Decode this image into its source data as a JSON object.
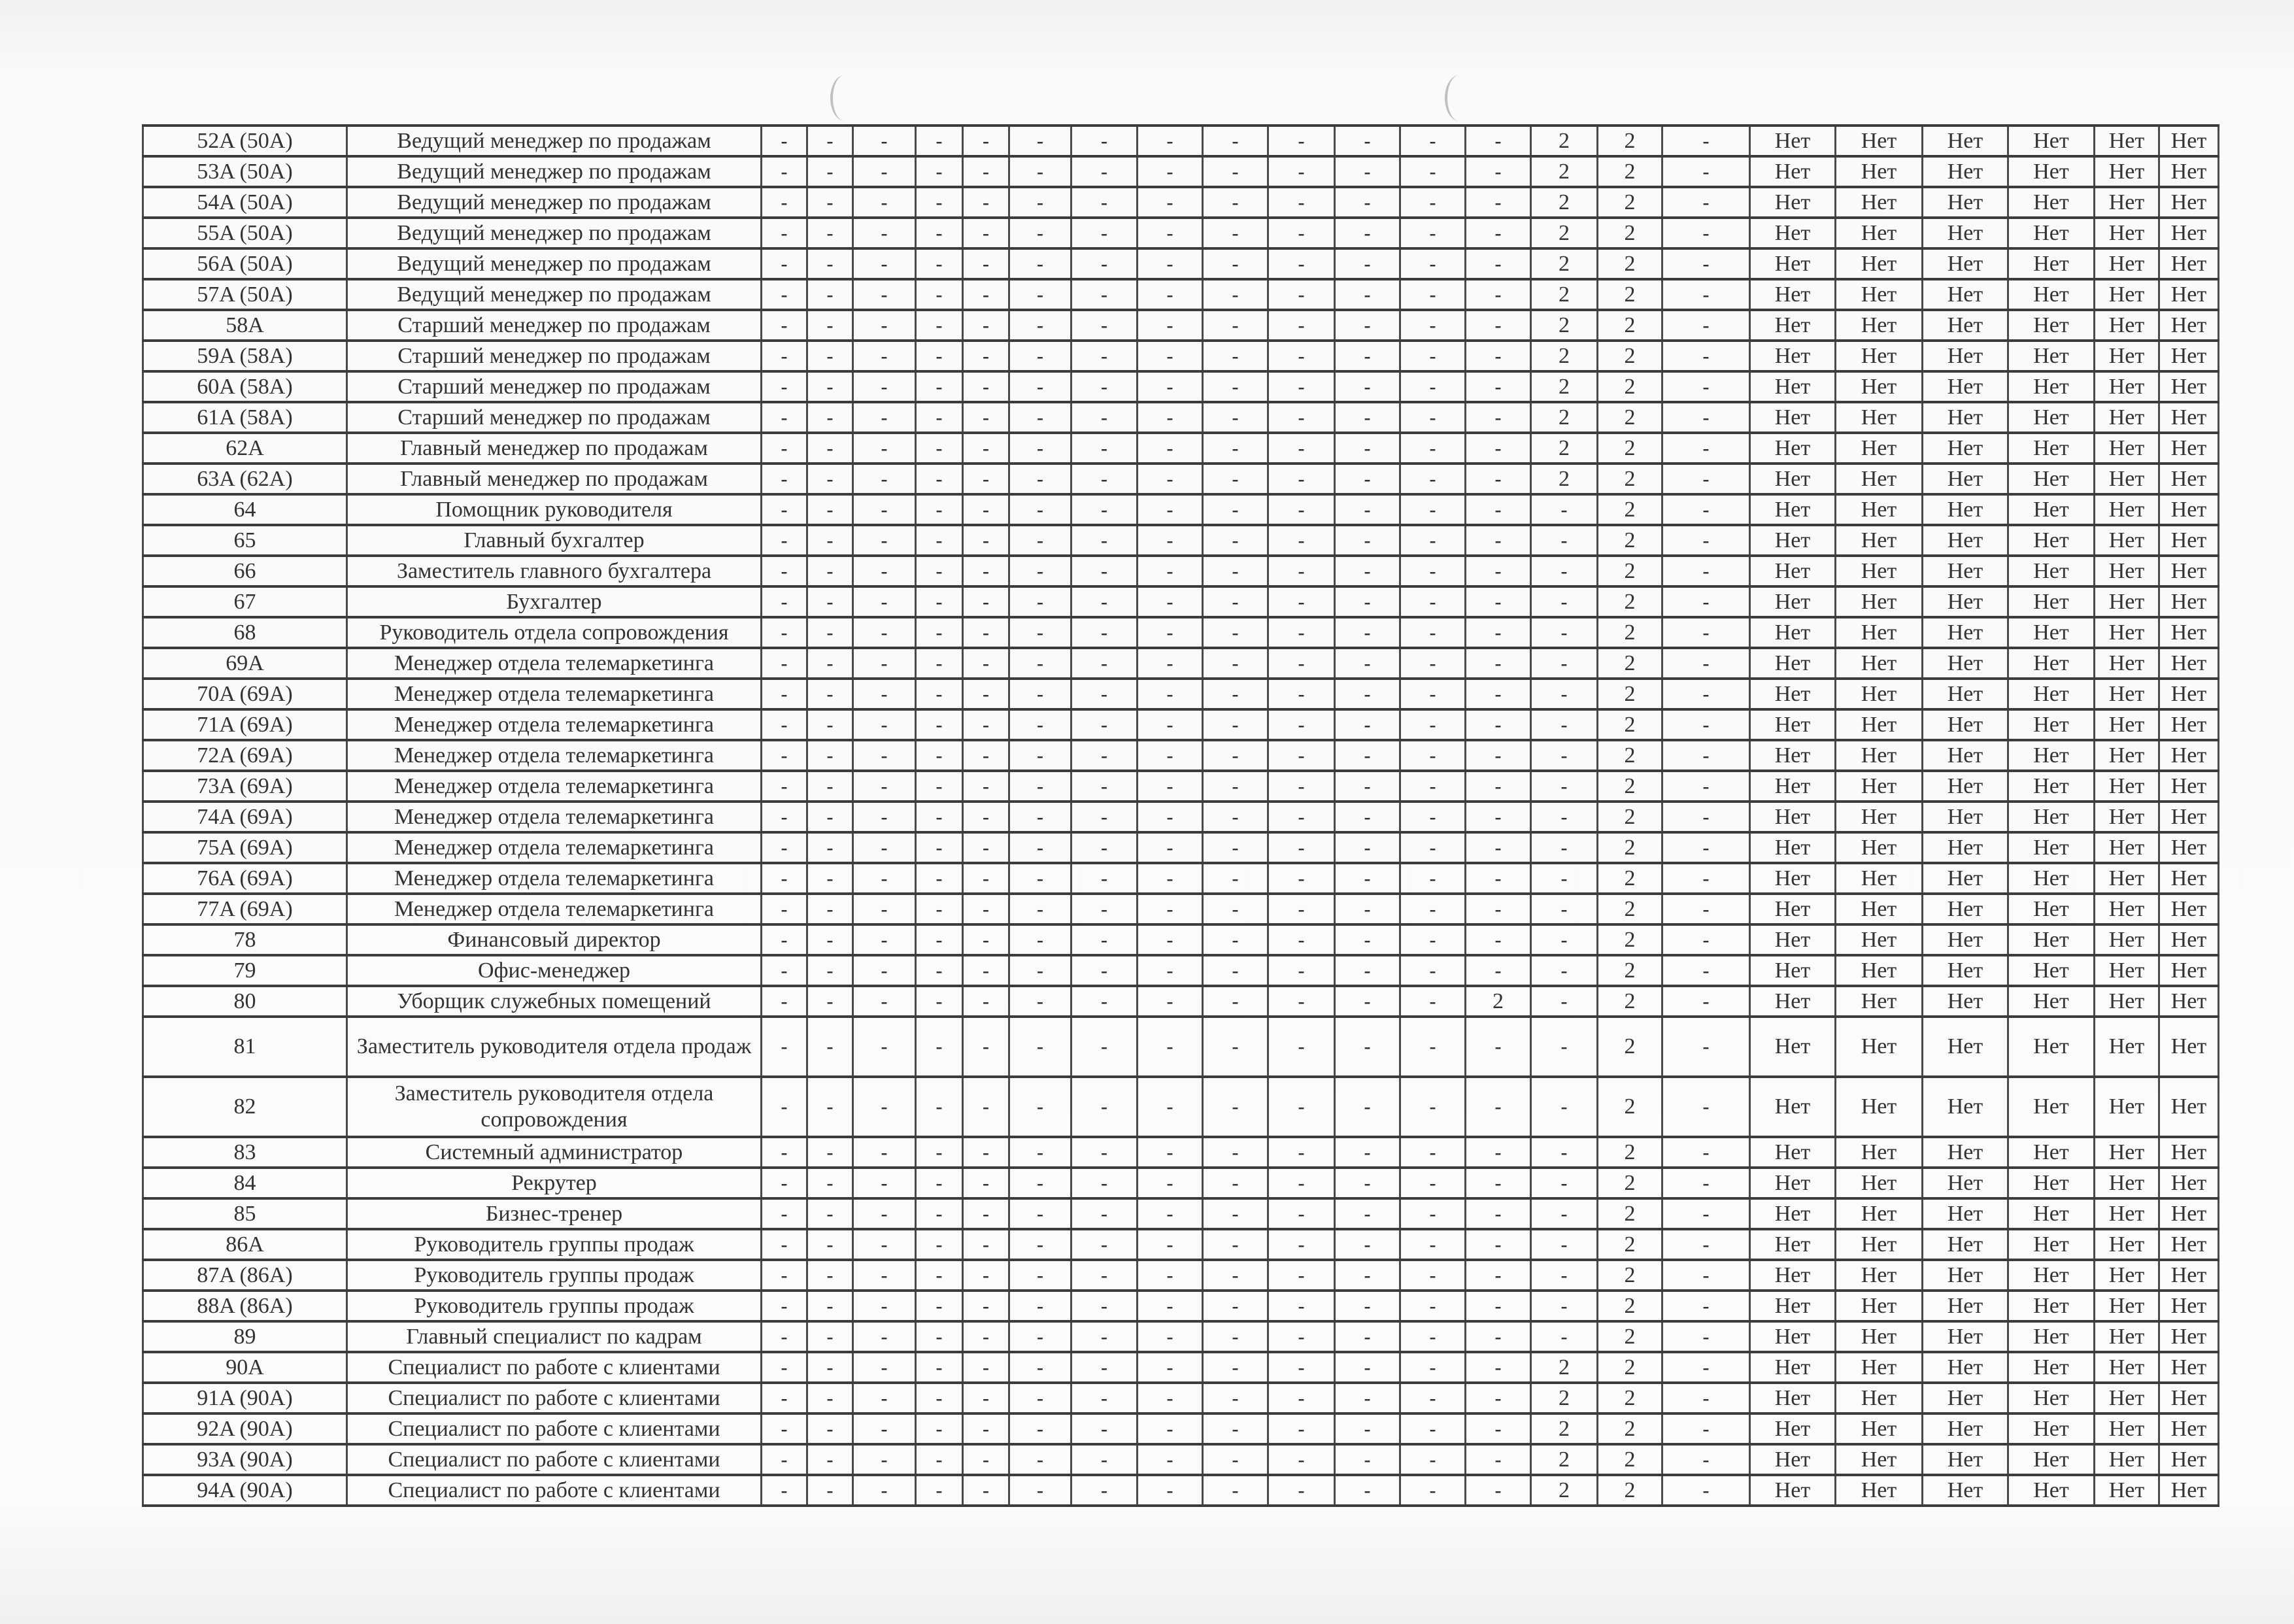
{
  "table": {
    "no_label": "Нет",
    "rows": [
      {
        "id": "52A (50A)",
        "title": "Ведущий менеджер по продажам",
        "values": [
          "-",
          "-",
          "-",
          "-",
          "-",
          "-",
          "-",
          "-",
          "-",
          "-",
          "-",
          "-",
          "-",
          "2",
          "2",
          "-"
        ]
      },
      {
        "id": "53A (50A)",
        "title": "Ведущий менеджер по продажам",
        "values": [
          "-",
          "-",
          "-",
          "-",
          "-",
          "-",
          "-",
          "-",
          "-",
          "-",
          "-",
          "-",
          "-",
          "2",
          "2",
          "-"
        ]
      },
      {
        "id": "54A (50A)",
        "title": "Ведущий менеджер по продажам",
        "values": [
          "-",
          "-",
          "-",
          "-",
          "-",
          "-",
          "-",
          "-",
          "-",
          "-",
          "-",
          "-",
          "-",
          "2",
          "2",
          "-"
        ]
      },
      {
        "id": "55A (50A)",
        "title": "Ведущий менеджер по продажам",
        "values": [
          "-",
          "-",
          "-",
          "-",
          "-",
          "-",
          "-",
          "-",
          "-",
          "-",
          "-",
          "-",
          "-",
          "2",
          "2",
          "-"
        ]
      },
      {
        "id": "56A (50A)",
        "title": "Ведущий менеджер по продажам",
        "values": [
          "-",
          "-",
          "-",
          "-",
          "-",
          "-",
          "-",
          "-",
          "-",
          "-",
          "-",
          "-",
          "-",
          "2",
          "2",
          "-"
        ]
      },
      {
        "id": "57A (50A)",
        "title": "Ведущий менеджер по продажам",
        "values": [
          "-",
          "-",
          "-",
          "-",
          "-",
          "-",
          "-",
          "-",
          "-",
          "-",
          "-",
          "-",
          "-",
          "2",
          "2",
          "-"
        ]
      },
      {
        "id": "58A",
        "title": "Старший менеджер по продажам",
        "values": [
          "-",
          "-",
          "-",
          "-",
          "-",
          "-",
          "-",
          "-",
          "-",
          "-",
          "-",
          "-",
          "-",
          "2",
          "2",
          "-"
        ]
      },
      {
        "id": "59A (58A)",
        "title": "Старший менеджер по продажам",
        "values": [
          "-",
          "-",
          "-",
          "-",
          "-",
          "-",
          "-",
          "-",
          "-",
          "-",
          "-",
          "-",
          "-",
          "2",
          "2",
          "-"
        ]
      },
      {
        "id": "60A (58A)",
        "title": "Старший менеджер по продажам",
        "values": [
          "-",
          "-",
          "-",
          "-",
          "-",
          "-",
          "-",
          "-",
          "-",
          "-",
          "-",
          "-",
          "-",
          "2",
          "2",
          "-"
        ]
      },
      {
        "id": "61A (58A)",
        "title": "Старший менеджер по продажам",
        "values": [
          "-",
          "-",
          "-",
          "-",
          "-",
          "-",
          "-",
          "-",
          "-",
          "-",
          "-",
          "-",
          "-",
          "2",
          "2",
          "-"
        ]
      },
      {
        "id": "62A",
        "title": "Главный менеджер по продажам",
        "values": [
          "-",
          "-",
          "-",
          "-",
          "-",
          "-",
          "-",
          "-",
          "-",
          "-",
          "-",
          "-",
          "-",
          "2",
          "2",
          "-"
        ]
      },
      {
        "id": "63A (62A)",
        "title": "Главный менеджер по продажам",
        "values": [
          "-",
          "-",
          "-",
          "-",
          "-",
          "-",
          "-",
          "-",
          "-",
          "-",
          "-",
          "-",
          "-",
          "2",
          "2",
          "-"
        ]
      },
      {
        "id": "64",
        "title": "Помощник руководителя",
        "values": [
          "-",
          "-",
          "-",
          "-",
          "-",
          "-",
          "-",
          "-",
          "-",
          "-",
          "-",
          "-",
          "-",
          "-",
          "2",
          "-"
        ]
      },
      {
        "id": "65",
        "title": "Главный бухгалтер",
        "values": [
          "-",
          "-",
          "-",
          "-",
          "-",
          "-",
          "-",
          "-",
          "-",
          "-",
          "-",
          "-",
          "-",
          "-",
          "2",
          "-"
        ]
      },
      {
        "id": "66",
        "title": "Заместитель главного бухгалтера",
        "values": [
          "-",
          "-",
          "-",
          "-",
          "-",
          "-",
          "-",
          "-",
          "-",
          "-",
          "-",
          "-",
          "-",
          "-",
          "2",
          "-"
        ]
      },
      {
        "id": "67",
        "title": "Бухгалтер",
        "values": [
          "-",
          "-",
          "-",
          "-",
          "-",
          "-",
          "-",
          "-",
          "-",
          "-",
          "-",
          "-",
          "-",
          "-",
          "2",
          "-"
        ]
      },
      {
        "id": "68",
        "title": "Руководитель отдела сопровождения",
        "values": [
          "-",
          "-",
          "-",
          "-",
          "-",
          "-",
          "-",
          "-",
          "-",
          "-",
          "-",
          "-",
          "-",
          "-",
          "2",
          "-"
        ]
      },
      {
        "id": "69A",
        "title": "Менеджер отдела телемаркетинга",
        "values": [
          "-",
          "-",
          "-",
          "-",
          "-",
          "-",
          "-",
          "-",
          "-",
          "-",
          "-",
          "-",
          "-",
          "-",
          "2",
          "-"
        ]
      },
      {
        "id": "70A (69A)",
        "title": "Менеджер отдела телемаркетинга",
        "values": [
          "-",
          "-",
          "-",
          "-",
          "-",
          "-",
          "-",
          "-",
          "-",
          "-",
          "-",
          "-",
          "-",
          "-",
          "2",
          "-"
        ]
      },
      {
        "id": "71A (69A)",
        "title": "Менеджер отдела телемаркетинга",
        "values": [
          "-",
          "-",
          "-",
          "-",
          "-",
          "-",
          "-",
          "-",
          "-",
          "-",
          "-",
          "-",
          "-",
          "-",
          "2",
          "-"
        ]
      },
      {
        "id": "72A (69A)",
        "title": "Менеджер отдела телемаркетинга",
        "values": [
          "-",
          "-",
          "-",
          "-",
          "-",
          "-",
          "-",
          "-",
          "-",
          "-",
          "-",
          "-",
          "-",
          "-",
          "2",
          "-"
        ]
      },
      {
        "id": "73A (69A)",
        "title": "Менеджер отдела телемаркетинга",
        "values": [
          "-",
          "-",
          "-",
          "-",
          "-",
          "-",
          "-",
          "-",
          "-",
          "-",
          "-",
          "-",
          "-",
          "-",
          "2",
          "-"
        ]
      },
      {
        "id": "74A (69A)",
        "title": "Менеджер отдела телемаркетинга",
        "values": [
          "-",
          "-",
          "-",
          "-",
          "-",
          "-",
          "-",
          "-",
          "-",
          "-",
          "-",
          "-",
          "-",
          "-",
          "2",
          "-"
        ]
      },
      {
        "id": "75A (69A)",
        "title": "Менеджер отдела телемаркетинга",
        "values": [
          "-",
          "-",
          "-",
          "-",
          "-",
          "-",
          "-",
          "-",
          "-",
          "-",
          "-",
          "-",
          "-",
          "-",
          "2",
          "-"
        ]
      },
      {
        "id": "76A (69A)",
        "title": "Менеджер отдела телемаркетинга",
        "values": [
          "-",
          "-",
          "-",
          "-",
          "-",
          "-",
          "-",
          "-",
          "-",
          "-",
          "-",
          "-",
          "-",
          "-",
          "2",
          "-"
        ]
      },
      {
        "id": "77A (69A)",
        "title": "Менеджер отдела телемаркетинга",
        "values": [
          "-",
          "-",
          "-",
          "-",
          "-",
          "-",
          "-",
          "-",
          "-",
          "-",
          "-",
          "-",
          "-",
          "-",
          "2",
          "-"
        ]
      },
      {
        "id": "78",
        "title": "Финансовый директор",
        "values": [
          "-",
          "-",
          "-",
          "-",
          "-",
          "-",
          "-",
          "-",
          "-",
          "-",
          "-",
          "-",
          "-",
          "-",
          "2",
          "-"
        ]
      },
      {
        "id": "79",
        "title": "Офис-менеджер",
        "values": [
          "-",
          "-",
          "-",
          "-",
          "-",
          "-",
          "-",
          "-",
          "-",
          "-",
          "-",
          "-",
          "-",
          "-",
          "2",
          "-"
        ]
      },
      {
        "id": "80",
        "title": "Уборщик служебных помещений",
        "values": [
          "-",
          "-",
          "-",
          "-",
          "-",
          "-",
          "-",
          "-",
          "-",
          "-",
          "-",
          "-",
          "2",
          "-",
          "2",
          "-"
        ]
      },
      {
        "id": "81",
        "title": "Заместитель руководителя отдела продаж",
        "values": [
          "-",
          "-",
          "-",
          "-",
          "-",
          "-",
          "-",
          "-",
          "-",
          "-",
          "-",
          "-",
          "-",
          "-",
          "2",
          "-"
        ]
      },
      {
        "id": "82",
        "title": "Заместитель руководителя отдела сопровождения",
        "values": [
          "-",
          "-",
          "-",
          "-",
          "-",
          "-",
          "-",
          "-",
          "-",
          "-",
          "-",
          "-",
          "-",
          "-",
          "2",
          "-"
        ]
      },
      {
        "id": "83",
        "title": "Системный администратор",
        "values": [
          "-",
          "-",
          "-",
          "-",
          "-",
          "-",
          "-",
          "-",
          "-",
          "-",
          "-",
          "-",
          "-",
          "-",
          "2",
          "-"
        ]
      },
      {
        "id": "84",
        "title": "Рекрутер",
        "values": [
          "-",
          "-",
          "-",
          "-",
          "-",
          "-",
          "-",
          "-",
          "-",
          "-",
          "-",
          "-",
          "-",
          "-",
          "2",
          "-"
        ]
      },
      {
        "id": "85",
        "title": "Бизнес-тренер",
        "values": [
          "-",
          "-",
          "-",
          "-",
          "-",
          "-",
          "-",
          "-",
          "-",
          "-",
          "-",
          "-",
          "-",
          "-",
          "2",
          "-"
        ]
      },
      {
        "id": "86A",
        "title": "Руководитель группы продаж",
        "values": [
          "-",
          "-",
          "-",
          "-",
          "-",
          "-",
          "-",
          "-",
          "-",
          "-",
          "-",
          "-",
          "-",
          "-",
          "2",
          "-"
        ]
      },
      {
        "id": "87A (86A)",
        "title": "Руководитель группы продаж",
        "values": [
          "-",
          "-",
          "-",
          "-",
          "-",
          "-",
          "-",
          "-",
          "-",
          "-",
          "-",
          "-",
          "-",
          "-",
          "2",
          "-"
        ]
      },
      {
        "id": "88A (86A)",
        "title": "Руководитель группы продаж",
        "values": [
          "-",
          "-",
          "-",
          "-",
          "-",
          "-",
          "-",
          "-",
          "-",
          "-",
          "-",
          "-",
          "-",
          "-",
          "2",
          "-"
        ]
      },
      {
        "id": "89",
        "title": "Главный специалист по кадрам",
        "values": [
          "-",
          "-",
          "-",
          "-",
          "-",
          "-",
          "-",
          "-",
          "-",
          "-",
          "-",
          "-",
          "-",
          "-",
          "2",
          "-"
        ]
      },
      {
        "id": "90A",
        "title": "Специалист по работе с клиентами",
        "values": [
          "-",
          "-",
          "-",
          "-",
          "-",
          "-",
          "-",
          "-",
          "-",
          "-",
          "-",
          "-",
          "-",
          "2",
          "2",
          "-"
        ]
      },
      {
        "id": "91A (90A)",
        "title": "Специалист по работе с клиентами",
        "values": [
          "-",
          "-",
          "-",
          "-",
          "-",
          "-",
          "-",
          "-",
          "-",
          "-",
          "-",
          "-",
          "-",
          "2",
          "2",
          "-"
        ]
      },
      {
        "id": "92A (90A)",
        "title": "Специалист по работе с клиентами",
        "values": [
          "-",
          "-",
          "-",
          "-",
          "-",
          "-",
          "-",
          "-",
          "-",
          "-",
          "-",
          "-",
          "-",
          "2",
          "2",
          "-"
        ]
      },
      {
        "id": "93A (90A)",
        "title": "Специалист по работе с клиентами",
        "values": [
          "-",
          "-",
          "-",
          "-",
          "-",
          "-",
          "-",
          "-",
          "-",
          "-",
          "-",
          "-",
          "-",
          "2",
          "2",
          "-"
        ]
      },
      {
        "id": "94A (90A)",
        "title": "Специалист по работе с клиентами",
        "values": [
          "-",
          "-",
          "-",
          "-",
          "-",
          "-",
          "-",
          "-",
          "-",
          "-",
          "-",
          "-",
          "-",
          "2",
          "2",
          "-"
        ]
      }
    ]
  }
}
